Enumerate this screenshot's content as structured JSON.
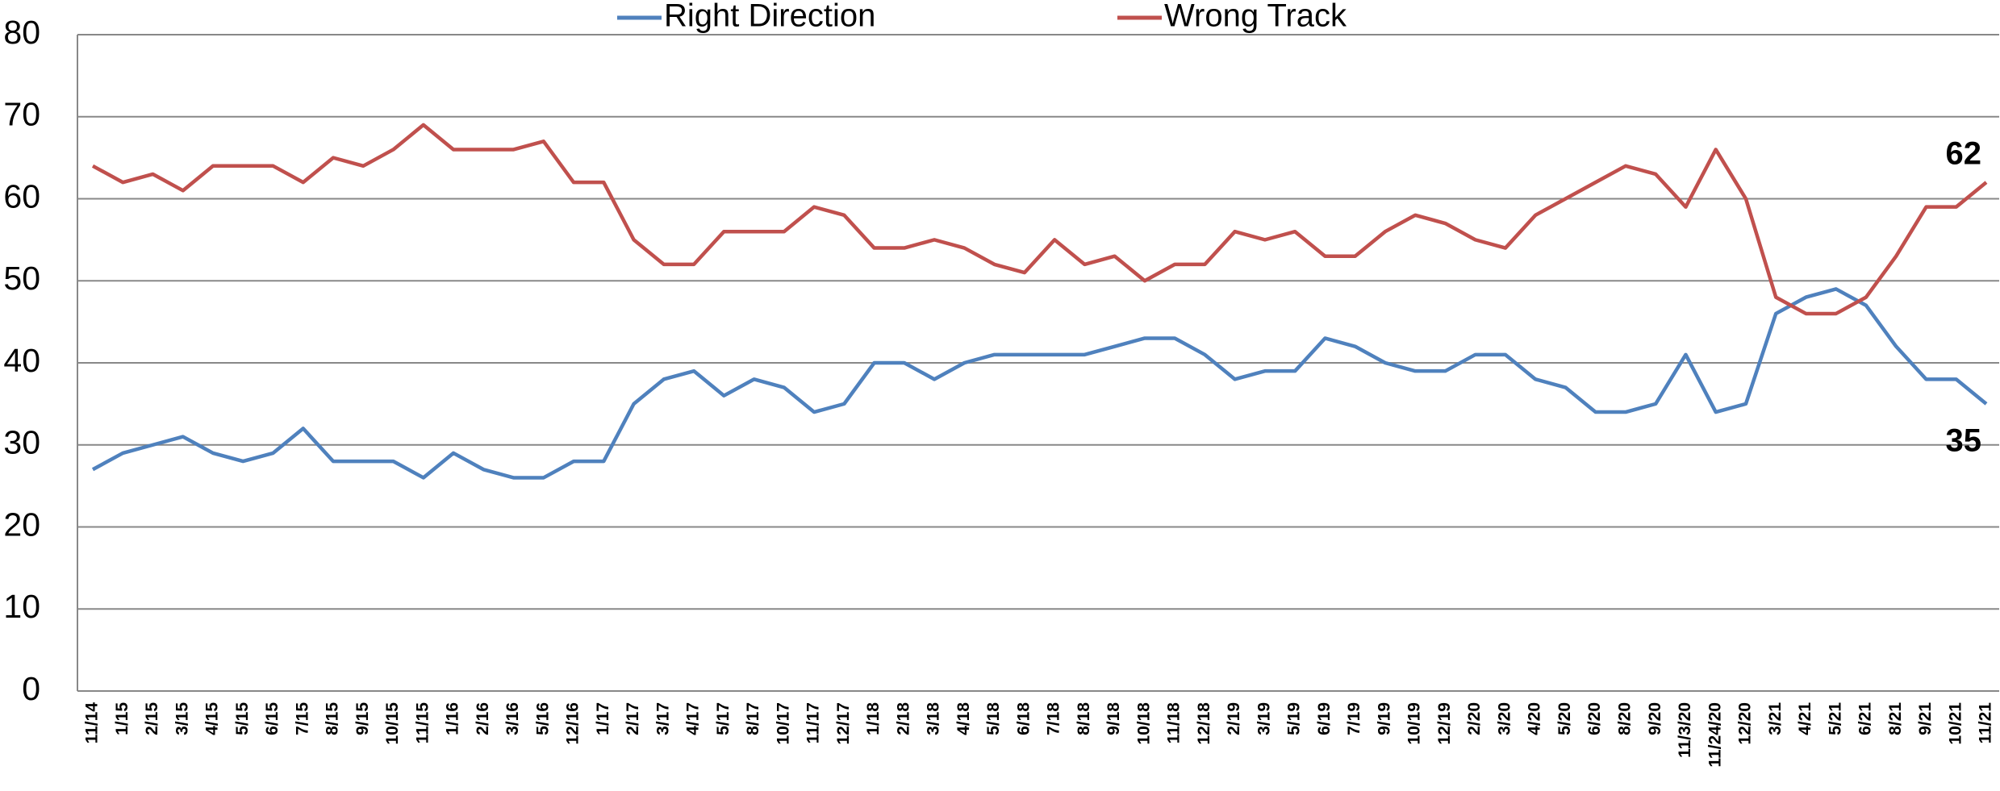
{
  "chart_data": {
    "type": "line",
    "categories": [
      "11/14",
      "1/15",
      "2/15",
      "3/15",
      "4/15",
      "5/15",
      "6/15",
      "7/15",
      "8/15",
      "9/15",
      "10/15",
      "11/15",
      "1/16",
      "2/16",
      "3/16",
      "5/16",
      "12/16",
      "1/17",
      "2/17",
      "3/17",
      "4/17",
      "5/17",
      "8/17",
      "10/17",
      "11/17",
      "12/17",
      "1/18",
      "2/18",
      "3/18",
      "4/18",
      "5/18",
      "6/18",
      "7/18",
      "8/18",
      "9/18",
      "10/18",
      "11/18",
      "12/18",
      "2/19",
      "3/19",
      "5/19",
      "6/19",
      "7/19",
      "9/19",
      "10/19",
      "12/19",
      "2/20",
      "3/20",
      "4/20",
      "5/20",
      "6/20",
      "8/20",
      "9/20",
      "11/3/20",
      "11/24/20",
      "12/20",
      "3/21",
      "4/21",
      "5/21",
      "6/21",
      "8/21",
      "9/21",
      "10/21",
      "11/21"
    ],
    "series": [
      {
        "name": "Right Direction",
        "color": "#4f81bd",
        "values": [
          27,
          29,
          30,
          31,
          29,
          28,
          29,
          32,
          28,
          28,
          28,
          26,
          29,
          27,
          26,
          26,
          28,
          28,
          35,
          38,
          39,
          36,
          38,
          37,
          34,
          35,
          40,
          40,
          38,
          40,
          41,
          41,
          41,
          41,
          42,
          43,
          43,
          41,
          38,
          39,
          39,
          43,
          42,
          40,
          39,
          39,
          41,
          41,
          38,
          37,
          34,
          34,
          35,
          41,
          34,
          35,
          46,
          48,
          49,
          47,
          42,
          38,
          38,
          35
        ]
      },
      {
        "name": "Wrong Track",
        "color": "#c0504d",
        "values": [
          64,
          62,
          63,
          61,
          64,
          64,
          64,
          62,
          65,
          64,
          66,
          69,
          66,
          66,
          66,
          67,
          62,
          62,
          55,
          52,
          52,
          56,
          56,
          56,
          59,
          58,
          54,
          54,
          55,
          54,
          52,
          51,
          55,
          52,
          53,
          50,
          52,
          52,
          56,
          55,
          56,
          53,
          53,
          56,
          58,
          57,
          55,
          54,
          58,
          60,
          62,
          64,
          63,
          59,
          66,
          60,
          48,
          46,
          46,
          48,
          53,
          59,
          59,
          62
        ]
      }
    ],
    "ylim": [
      0,
      80
    ],
    "yticks": [
      0,
      10,
      20,
      30,
      40,
      50,
      60,
      70,
      80
    ],
    "grid": true,
    "legend": "top"
  }
}
